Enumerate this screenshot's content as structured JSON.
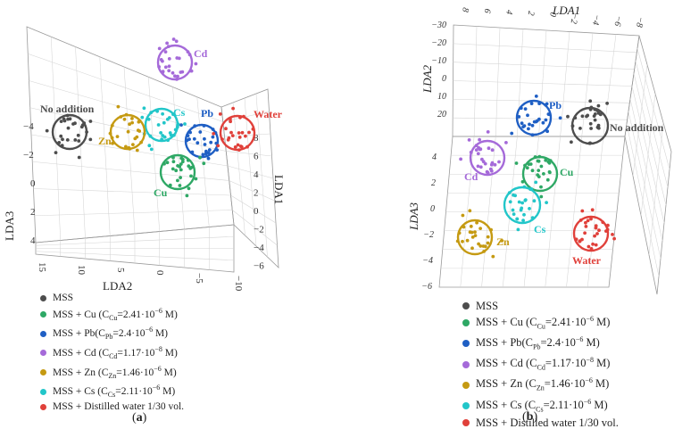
{
  "colors": {
    "MSS": "#4d4d4d",
    "Cu": "#2ea865",
    "Pb": "#1f5fc4",
    "Cd": "#a56ad9",
    "Zn": "#c59a12",
    "Cs": "#22c6c9",
    "Water": "#e0403a"
  },
  "legend": [
    {
      "key": "MSS",
      "text": "MSS"
    },
    {
      "key": "Cu",
      "text": "MSS + Cu (C",
      "sub": "Cu",
      "tail": "=2.41·10",
      "sup": "−6",
      "end": " M)"
    },
    {
      "key": "Pb",
      "text": "MSS + Pb(C",
      "sub": "Pb",
      "tail": "=2.4·10",
      "sup": "−6",
      "end": " M)"
    },
    {
      "key": "Cd",
      "text": "MSS + Cd (C",
      "sub": "Cd",
      "tail": "=1.17·10",
      "sup": "−8",
      "end": " M)"
    },
    {
      "key": "Zn",
      "text": "MSS + Zn (C",
      "sub": "Zn",
      "tail": "=1.46·10",
      "sup": "−6",
      "end": " M)"
    },
    {
      "key": "Cs",
      "text": "MSS + Cs (C",
      "sub": "Cs",
      "tail": "=2.11·10",
      "sup": "−6",
      "end": " M)"
    },
    {
      "key": "Water",
      "text": "MSS + Distilled water 1/30 vol."
    }
  ],
  "captions": {
    "a": "a",
    "b": "b"
  },
  "chart_data": [
    {
      "panel": "a",
      "type": "scatter",
      "projection": "3d",
      "axes": {
        "LDA1": {
          "label": "LDA1",
          "ticks": [
            "8",
            "6",
            "4",
            "2",
            "0",
            "−2",
            "−4",
            "−6"
          ]
        },
        "LDA2": {
          "label": "LDA2",
          "ticks": [
            "15",
            "10",
            "5",
            "0",
            "−5",
            "−10"
          ]
        },
        "LDA3": {
          "label": "LDA3",
          "ticks": [
            "−4",
            "−2",
            "0",
            "2",
            "4"
          ]
        }
      },
      "groups": [
        {
          "key": "MSS",
          "label": "No addition",
          "lda1": 6,
          "lda2": 13,
          "lda3": -2
        },
        {
          "key": "Cd",
          "label": "Cd",
          "lda1": -1,
          "lda2": 3,
          "lda3": -6
        },
        {
          "key": "Cs",
          "label": "Cs",
          "lda1": 3,
          "lda2": 3,
          "lda3": -3
        },
        {
          "key": "Pb",
          "label": "Pb",
          "lda1": 1,
          "lda2": -4,
          "lda3": -3
        },
        {
          "key": "Water",
          "label": "Water",
          "lda1": 3,
          "lda2": -7,
          "lda3": -4
        },
        {
          "key": "Zn",
          "label": "Zn",
          "lda1": 5,
          "lda2": 6,
          "lda3": -2
        },
        {
          "key": "Cu",
          "label": "Cu",
          "lda1": 2,
          "lda2": 1,
          "lda3": 0
        }
      ]
    },
    {
      "panel": "b",
      "type": "scatter",
      "projection": "3d",
      "axes": {
        "LDA1": {
          "label": "LDA1",
          "ticks": [
            "8",
            "6",
            "4",
            "2",
            "0",
            "−2",
            "−4",
            "−6",
            "−8"
          ]
        },
        "LDA2": {
          "label": "LDA2",
          "ticks": [
            "−30",
            "−20",
            "−10",
            "0",
            "10",
            "20"
          ]
        },
        "LDA3": {
          "label": "LDA3",
          "ticks": [
            "4",
            "2",
            "0",
            "−2",
            "−4",
            "−6"
          ]
        }
      },
      "groups": [
        {
          "key": "Pb",
          "label": "Pb",
          "lda2": 10,
          "lda3": 7
        },
        {
          "key": "MSS",
          "label": "No addition",
          "lda2": 10,
          "lda3": 7
        },
        {
          "key": "Cd",
          "label": "Cd",
          "lda2": 3,
          "lda3": 3
        },
        {
          "key": "Cu",
          "label": "Cu",
          "lda2": 3,
          "lda3": 2
        },
        {
          "key": "Cs",
          "label": "Cs",
          "lda2": 0,
          "lda3": 0
        },
        {
          "key": "Zn",
          "label": "Zn",
          "lda2": -3,
          "lda3": -3
        },
        {
          "key": "Water",
          "label": "Water",
          "lda2": -3,
          "lda3": -2
        }
      ]
    }
  ]
}
